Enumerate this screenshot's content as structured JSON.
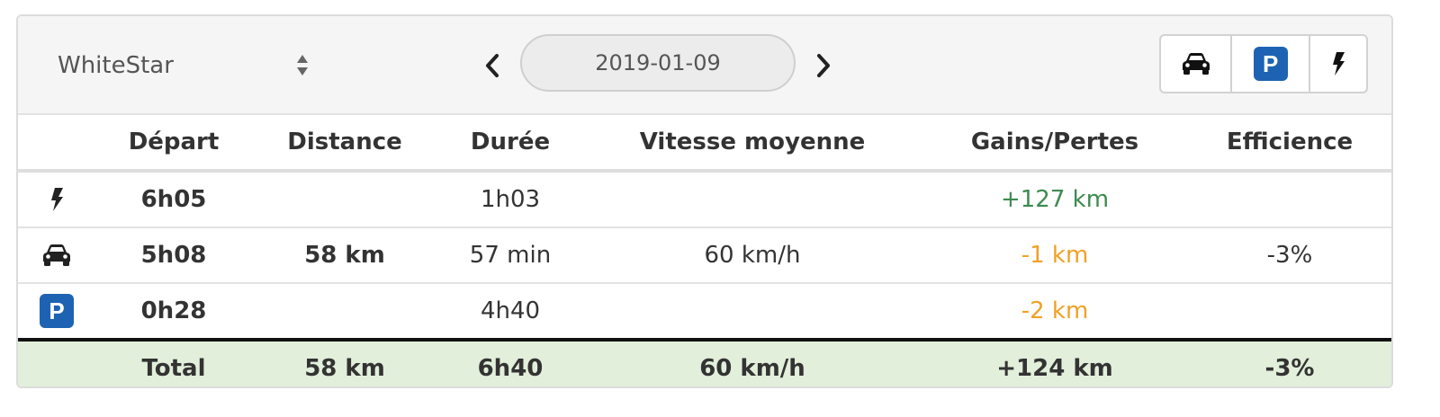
{
  "header": {
    "vehicle_name": "WhiteStar",
    "date": "2019-01-09",
    "filters": [
      {
        "icon": "car-icon"
      },
      {
        "icon": "parking-icon",
        "label": "P"
      },
      {
        "icon": "lightning-icon"
      }
    ]
  },
  "table": {
    "columns": [
      "",
      "Départ",
      "Distance",
      "Durée",
      "Vitesse moyenne",
      "Gains/Pertes",
      "Efficience"
    ],
    "rows": [
      {
        "type": "charge",
        "icon": "lightning-icon",
        "depart": "6h05",
        "distance": "",
        "duree": "1h03",
        "vitesse": "",
        "gains": "+127 km",
        "efficience": ""
      },
      {
        "type": "drive",
        "icon": "car-icon",
        "depart": "5h08",
        "distance": "58 km",
        "duree": "57 min",
        "vitesse": "60 km/h",
        "gains": "-1 km",
        "efficience": "-3%"
      },
      {
        "type": "park",
        "icon": "parking-icon",
        "icon_label": "P",
        "depart": "0h28",
        "distance": "",
        "duree": "4h40",
        "vitesse": "",
        "gains": "-2 km",
        "efficience": ""
      }
    ],
    "total": {
      "label": "Total",
      "distance": "58 km",
      "duree": "6h40",
      "vitesse": "60 km/h",
      "gains": "+124 km",
      "efficience": "-3%"
    }
  },
  "colors": {
    "gain": "#3d8b4f",
    "loss": "#f0a125",
    "total_bg": "#e2efdb",
    "parking_badge": "#1e63b3"
  }
}
